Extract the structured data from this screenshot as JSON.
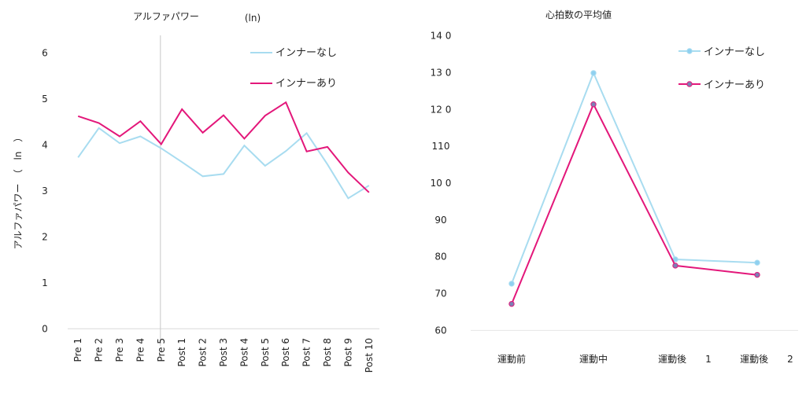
{
  "chart_data": [
    {
      "type": "line",
      "title": "アルファパワー",
      "title_unit": "(ln)",
      "ylabel": "アルファパワー　（　ln　）",
      "xlabel": "",
      "ylim": [
        0,
        6
      ],
      "yticks": [
        0,
        1,
        2,
        3,
        4,
        5,
        6
      ],
      "grid": false,
      "legend": "top-right",
      "divider_after_category": "Pre 5",
      "categories": [
        "Pre 1",
        "Pre 2",
        "Pre 3",
        "Pre 4",
        "Pre 5",
        "Post 1",
        "Post 2",
        "Post 3",
        "Post 4",
        "Post 5",
        "Post 6",
        "Post 7",
        "Post 8",
        "Post 9",
        "Post 10"
      ],
      "series": [
        {
          "name": "インナーなし",
          "color": "#a8dcf0",
          "values": [
            3.73,
            4.37,
            4.04,
            4.19,
            3.93,
            3.63,
            3.32,
            3.37,
            3.99,
            3.55,
            3.87,
            4.26,
            3.58,
            2.84,
            3.12
          ]
        },
        {
          "name": "インナーあり",
          "color": "#e3177a",
          "values": [
            4.63,
            4.48,
            4.19,
            4.52,
            4.02,
            4.78,
            4.27,
            4.65,
            4.14,
            4.64,
            4.93,
            3.86,
            3.96,
            3.4,
            2.97
          ]
        }
      ]
    },
    {
      "type": "line",
      "title": "心拍数の平均値",
      "xlabel": "",
      "ylabel": "",
      "ylim": [
        60,
        140
      ],
      "yticks": [
        60,
        70,
        80,
        90,
        100,
        110,
        120,
        130,
        140
      ],
      "ytick_labels": [
        "60",
        "70",
        "80",
        "90",
        "10 0",
        "110",
        "12 0",
        "13 0",
        "14 0"
      ],
      "grid": false,
      "legend": "top-right",
      "categories": [
        "運動前",
        "運動中",
        "運動後　　1",
        "運動後　　2"
      ],
      "series": [
        {
          "name": "インナーなし",
          "color": "#a8dcf0",
          "marker_color": "#8fd0f0",
          "values": [
            72.7,
            129.9,
            79.3,
            78.4
          ]
        },
        {
          "name": "インナーあり",
          "color": "#e3177a",
          "marker_color": "#7d80b5",
          "values": [
            67.2,
            121.4,
            77.6,
            75.1
          ]
        }
      ]
    }
  ]
}
